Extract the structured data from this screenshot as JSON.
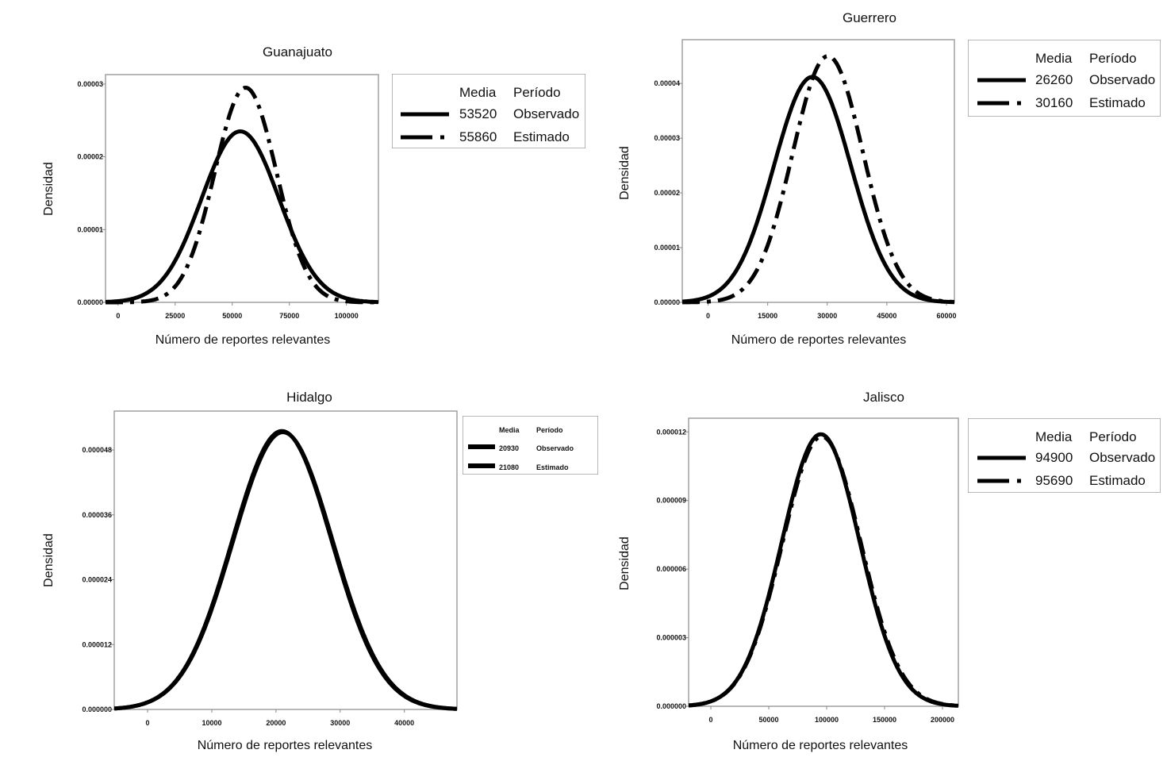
{
  "chart_data": [
    {
      "type": "line",
      "title": "Guanajuato",
      "xlabel": "Número de reportes relevantes",
      "ylabel": "Densidad",
      "xlim": [
        -5500,
        114000
      ],
      "ylim": [
        0,
        3.13e-05
      ],
      "xticks": [
        0,
        25000,
        50000,
        75000,
        100000
      ],
      "xtick_labels": [
        "0",
        "25000",
        "50000",
        "75000",
        "100000"
      ],
      "yticks": [
        0,
        1e-05,
        2e-05,
        3e-05
      ],
      "ytick_labels": [
        "0.00000",
        "0.00001",
        "0.00002",
        "0.00003"
      ],
      "legend": {
        "header_mean": "Media",
        "header_period": "Período",
        "placement": "right"
      },
      "series": [
        {
          "name": "Observado",
          "mean": 53520,
          "mean_label": "53520",
          "peak_density": 2.35e-05,
          "style": "solid"
        },
        {
          "name": "Estimado",
          "mean": 55860,
          "mean_label": "55860",
          "peak_density": 2.95e-05,
          "style": "dash-dot"
        }
      ]
    },
    {
      "type": "line",
      "title": "Guerrero",
      "xlabel": "Número de reportes relevantes",
      "ylabel": "Densidad",
      "xlim": [
        -6500,
        62000
      ],
      "ylim": [
        0,
        4.8e-05
      ],
      "xticks": [
        0,
        15000,
        30000,
        45000,
        60000
      ],
      "xtick_labels": [
        "0",
        "15000",
        "30000",
        "45000",
        "60000"
      ],
      "yticks": [
        0,
        1e-05,
        2e-05,
        3e-05,
        4e-05
      ],
      "ytick_labels": [
        "0.00000",
        "0.00001",
        "0.00002",
        "0.00003",
        "0.00004"
      ],
      "legend": {
        "header_mean": "Media",
        "header_period": "Período",
        "placement": "right"
      },
      "series": [
        {
          "name": "Observado",
          "mean": 26260,
          "mean_label": "26260",
          "peak_density": 4.12e-05,
          "style": "solid"
        },
        {
          "name": "Estimado",
          "mean": 30160,
          "mean_label": "30160",
          "peak_density": 4.5e-05,
          "style": "dash-dot"
        }
      ]
    },
    {
      "type": "line",
      "title": "Hidalgo",
      "xlabel": "Número de reportes relevantes",
      "ylabel": "Densidad",
      "xlim": [
        -5200,
        48200
      ],
      "ylim": [
        0,
        5.52e-05
      ],
      "xticks": [
        0,
        10000,
        20000,
        30000,
        40000
      ],
      "xtick_labels": [
        "0",
        "10000",
        "20000",
        "30000",
        "40000"
      ],
      "yticks": [
        0,
        1.2e-05,
        2.4e-05,
        3.6e-05,
        4.8e-05
      ],
      "ytick_labels": [
        "0.000000",
        "0.000012",
        "0.000024",
        "0.000036",
        "0.000048"
      ],
      "legend": {
        "header_mean": "Media",
        "header_period": "Período",
        "placement": "right"
      },
      "series": [
        {
          "name": "Observado",
          "mean": 20930,
          "mean_label": "20930",
          "peak_density": 5.15e-05,
          "style": "solid"
        },
        {
          "name": "Estimado",
          "mean": 21080,
          "mean_label": "21080",
          "peak_density": 5.13e-05,
          "style": "solid"
        }
      ]
    },
    {
      "type": "line",
      "title": "Jalisco",
      "xlabel": "Número de reportes relevantes",
      "ylabel": "Densidad",
      "xlim": [
        -19200,
        213700
      ],
      "ylim": [
        0,
        1.26e-05
      ],
      "xticks": [
        0,
        50000,
        100000,
        150000,
        200000
      ],
      "xtick_labels": [
        "0",
        "50000",
        "100000",
        "150000",
        "200000"
      ],
      "yticks": [
        0,
        3e-06,
        6e-06,
        9e-06,
        1.2e-05
      ],
      "ytick_labels": [
        "0.000000",
        "0.000003",
        "0.000006",
        "0.000009",
        "0.000012"
      ],
      "legend": {
        "header_mean": "Media",
        "header_period": "Período",
        "placement": "right"
      },
      "series": [
        {
          "name": "Observado",
          "mean": 94900,
          "mean_label": "94900",
          "peak_density": 1.19e-05,
          "style": "solid"
        },
        {
          "name": "Estimado",
          "mean": 95690,
          "mean_label": "95690",
          "peak_density": 1.18e-05,
          "style": "dash-dot"
        }
      ]
    }
  ]
}
